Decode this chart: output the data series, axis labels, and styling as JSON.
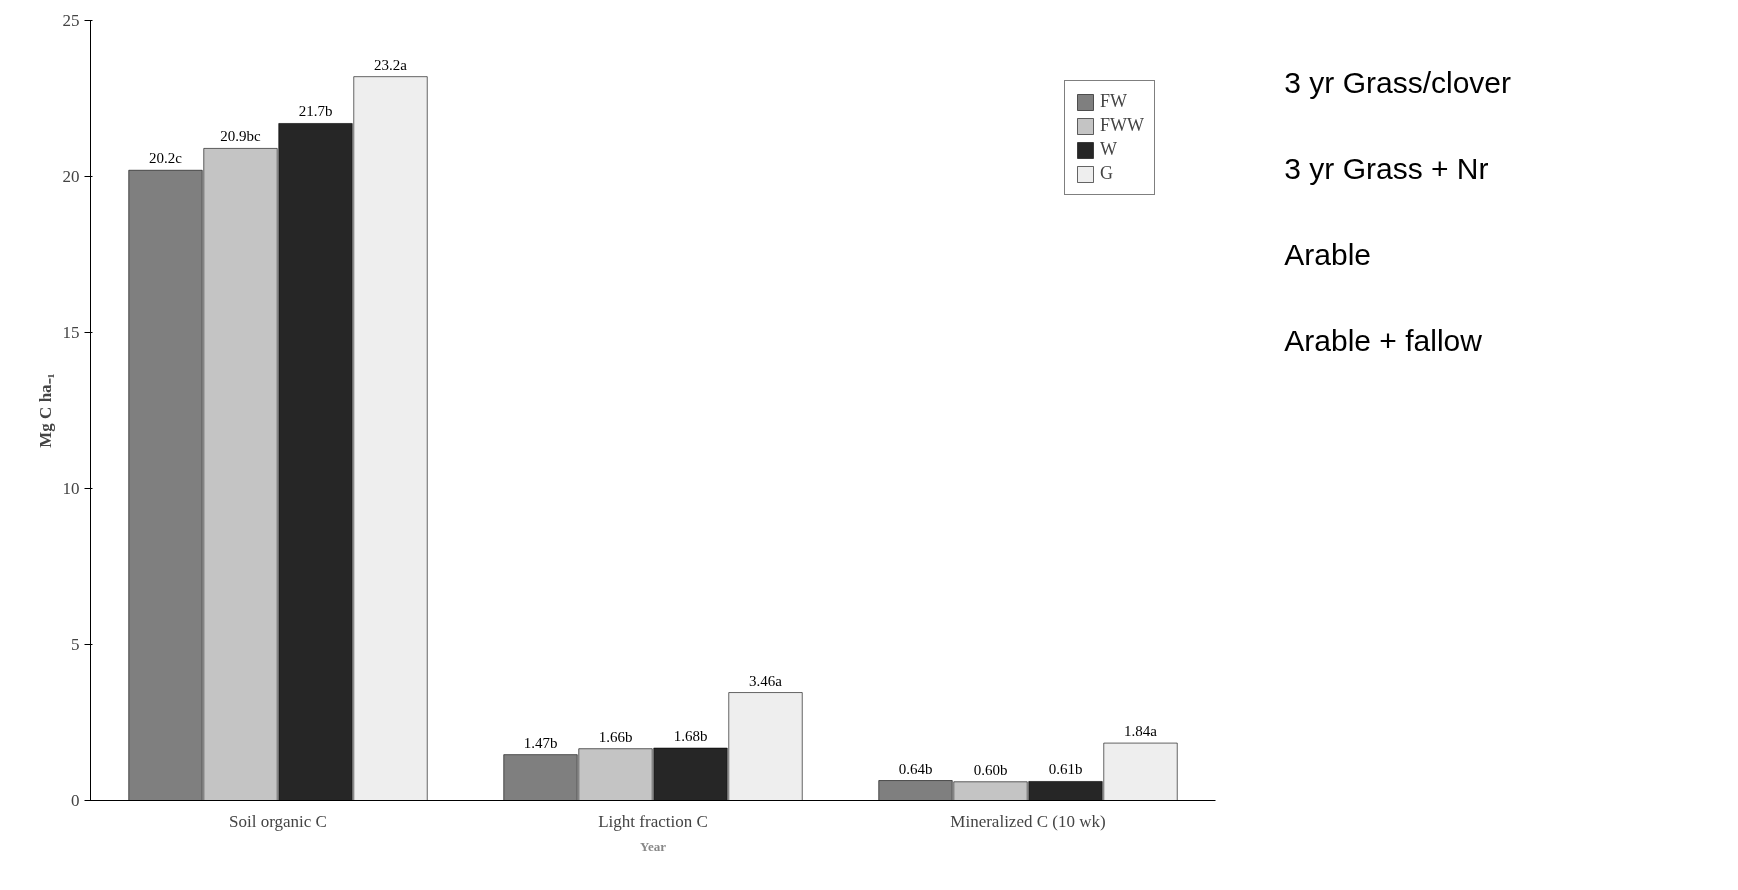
{
  "chart_data": {
    "type": "bar",
    "xlabel": "Year",
    "ylabel": "Mg C ha₋₁",
    "categories": [
      "Soil organic C",
      "Light fraction C",
      "Mineralized C (10 wk)"
    ],
    "series": [
      {
        "name": "FW",
        "color": "#7f7f7f",
        "values": [
          20.2,
          1.47,
          0.64
        ],
        "value_labels": [
          "20.2c",
          "1.47b",
          "0.64b"
        ]
      },
      {
        "name": "FWW",
        "color": "#c4c4c4",
        "values": [
          20.9,
          1.66,
          0.6
        ],
        "value_labels": [
          "20.9bc",
          "1.66b",
          "0.60b"
        ]
      },
      {
        "name": "W",
        "color": "#262626",
        "values": [
          21.7,
          1.68,
          0.61
        ],
        "value_labels": [
          "21.7b",
          "1.68b",
          "0.61b"
        ]
      },
      {
        "name": "G",
        "color": "#eeeeee",
        "values": [
          23.2,
          3.46,
          1.84
        ],
        "value_labels": [
          "23.2a",
          "3.46a",
          "1.84a"
        ]
      }
    ],
    "ylim": [
      0,
      25
    ],
    "yticks": [
      0,
      5,
      10,
      15,
      20,
      25
    ],
    "grid": false,
    "legend": "top right",
    "annotations": [
      "3 yr Grass/clover",
      "3 yr Grass + Nr",
      "Arable",
      "Arable + fallow"
    ]
  }
}
